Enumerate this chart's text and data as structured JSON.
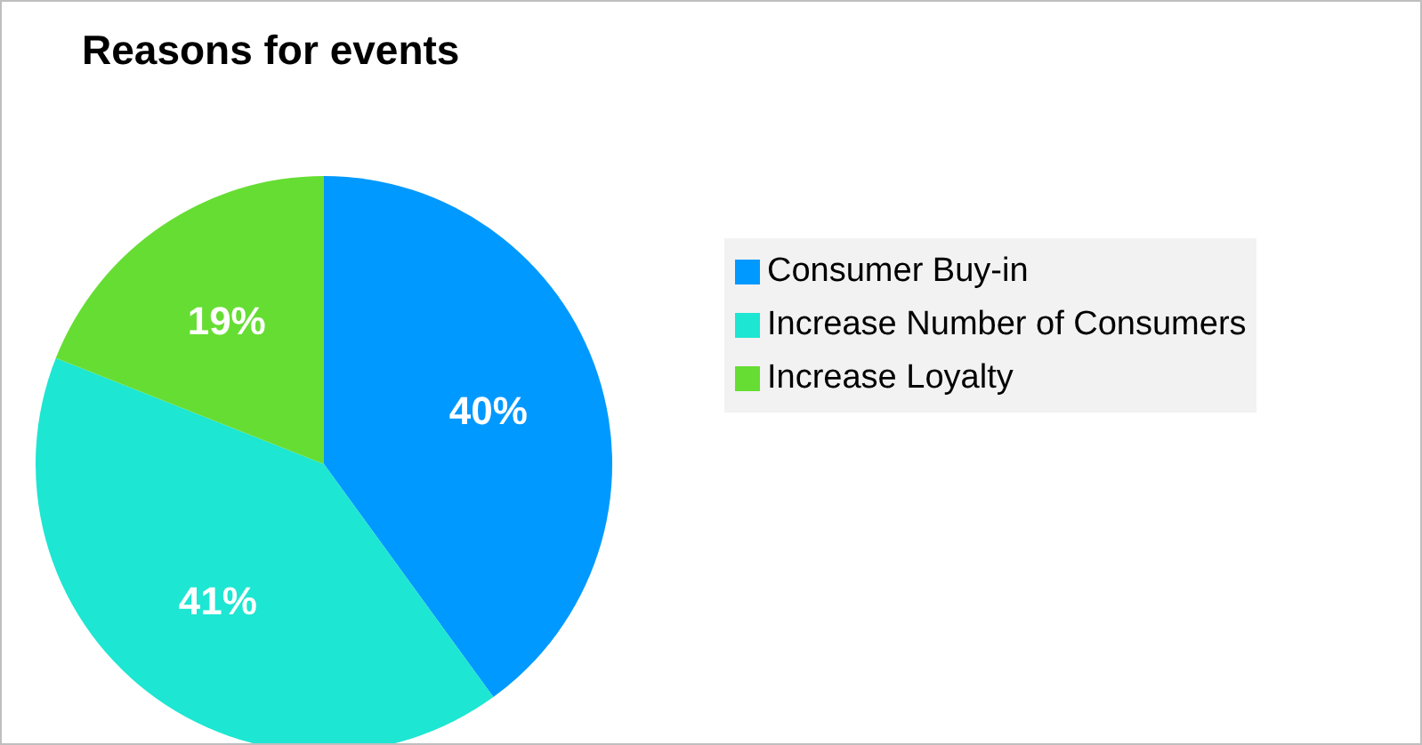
{
  "chart_data": {
    "type": "pie",
    "title": "Reasons for events",
    "categories": [
      "Consumer Buy-in",
      "Increase Number of Consumers",
      "Increase Loyalty"
    ],
    "values": [
      40,
      41,
      19
    ],
    "colors": [
      "#0099ff",
      "#1de6d2",
      "#66dd33"
    ],
    "value_labels": [
      "40%",
      "41%",
      "19%"
    ],
    "legend": "right"
  }
}
